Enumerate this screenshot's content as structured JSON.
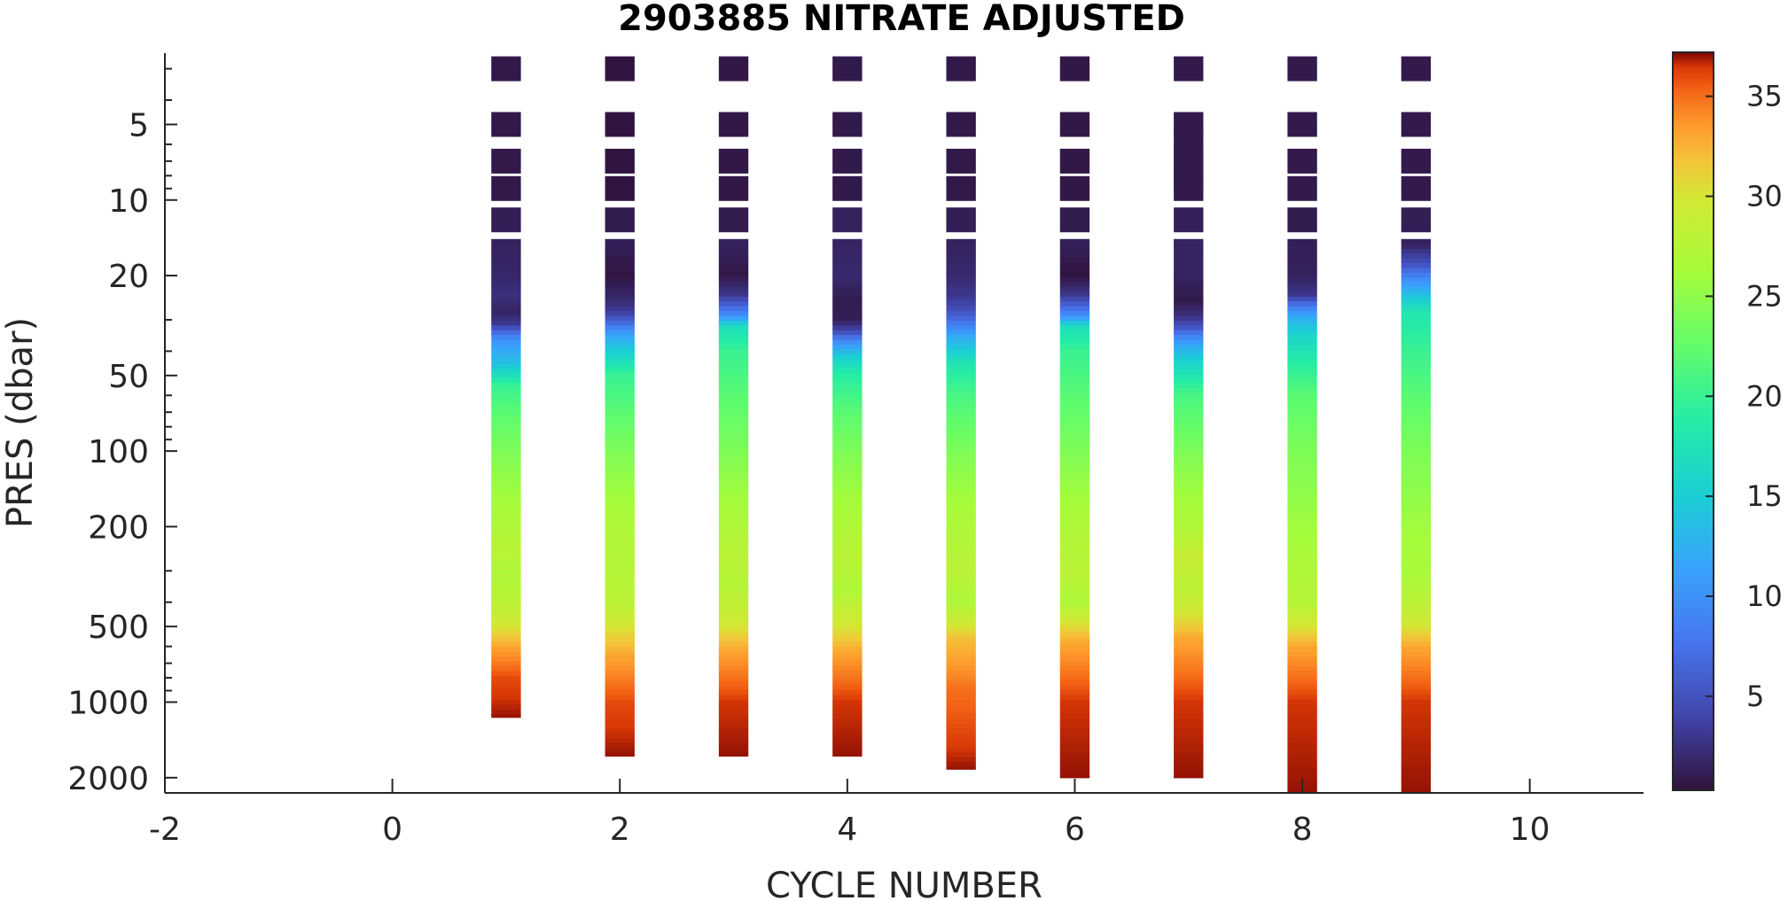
{
  "chart_data": {
    "type": "heatmap",
    "title": "2903885  NITRATE ADJUSTED",
    "xlabel": "CYCLE NUMBER",
    "ylabel": "PRES (dbar)",
    "xlim": [
      -2,
      11
    ],
    "ylim": [
      2.6,
      2300
    ],
    "y_scale": "log",
    "y_reversed": true,
    "x_ticks": [
      -2,
      0,
      2,
      4,
      6,
      8,
      10
    ],
    "y_ticks": [
      5,
      10,
      20,
      50,
      100,
      200,
      500,
      1000,
      2000
    ],
    "colorbar": {
      "range": [
        0.3,
        37.2
      ],
      "ticks": [
        5,
        10,
        15,
        20,
        25,
        30,
        35
      ],
      "colormap": "turbo"
    },
    "cycles": [
      {
        "cycle": 1,
        "max_pres": 1150,
        "mix_top": 40,
        "deep_start": 600,
        "profile": [
          [
            3,
            0.8
          ],
          [
            5,
            0.8
          ],
          [
            7,
            0.8
          ],
          [
            9,
            0.8
          ],
          [
            12,
            1.2
          ],
          [
            15,
            1.5
          ],
          [
            20,
            1.8
          ],
          [
            24,
            2.5
          ],
          [
            28,
            1.6
          ],
          [
            31,
            3
          ],
          [
            33,
            6
          ],
          [
            36,
            10
          ],
          [
            40,
            12
          ],
          [
            45,
            14
          ],
          [
            55,
            20
          ],
          [
            70,
            22
          ],
          [
            100,
            24
          ],
          [
            150,
            26
          ],
          [
            200,
            27
          ],
          [
            250,
            28
          ],
          [
            300,
            27
          ],
          [
            400,
            28
          ],
          [
            500,
            30
          ],
          [
            600,
            33
          ],
          [
            800,
            36
          ],
          [
            1150,
            37
          ]
        ]
      },
      {
        "cycle": 2,
        "max_pres": 1640,
        "mix_top": 34,
        "deep_start": 650,
        "profile": [
          [
            3,
            0.5
          ],
          [
            5,
            0.5
          ],
          [
            7,
            0.5
          ],
          [
            9,
            0.5
          ],
          [
            12,
            1
          ],
          [
            15,
            1.2
          ],
          [
            20,
            0.6
          ],
          [
            25,
            2
          ],
          [
            28,
            3.5
          ],
          [
            31,
            7
          ],
          [
            34,
            11
          ],
          [
            40,
            15
          ],
          [
            50,
            20
          ],
          [
            70,
            22
          ],
          [
            100,
            24
          ],
          [
            150,
            26
          ],
          [
            200,
            27
          ],
          [
            300,
            27.5
          ],
          [
            400,
            28
          ],
          [
            500,
            30
          ],
          [
            650,
            33
          ],
          [
            1000,
            36
          ],
          [
            1640,
            37
          ]
        ]
      },
      {
        "cycle": 3,
        "max_pres": 1640,
        "mix_top": 30,
        "deep_start": 620,
        "profile": [
          [
            3,
            0.7
          ],
          [
            5,
            0.7
          ],
          [
            7,
            0.7
          ],
          [
            9,
            0.7
          ],
          [
            12,
            1
          ],
          [
            15,
            1.4
          ],
          [
            20,
            0.8
          ],
          [
            24,
            3
          ],
          [
            26,
            6
          ],
          [
            29,
            10
          ],
          [
            32,
            17
          ],
          [
            40,
            20
          ],
          [
            60,
            22
          ],
          [
            100,
            24
          ],
          [
            150,
            26
          ],
          [
            200,
            27
          ],
          [
            260,
            28
          ],
          [
            350,
            27.5
          ],
          [
            500,
            30
          ],
          [
            620,
            33
          ],
          [
            1000,
            36.5
          ],
          [
            1640,
            37
          ]
        ]
      },
      {
        "cycle": 4,
        "max_pres": 1640,
        "mix_top": 42,
        "deep_start": 630,
        "profile": [
          [
            3,
            0.9
          ],
          [
            5,
            0.9
          ],
          [
            7,
            0.9
          ],
          [
            9,
            0.9
          ],
          [
            12,
            1.4
          ],
          [
            15,
            1.6
          ],
          [
            20,
            2
          ],
          [
            25,
            1
          ],
          [
            30,
            1.2
          ],
          [
            33,
            4
          ],
          [
            37,
            10
          ],
          [
            42,
            15
          ],
          [
            50,
            19
          ],
          [
            70,
            22
          ],
          [
            100,
            24
          ],
          [
            150,
            26
          ],
          [
            200,
            27
          ],
          [
            260,
            28
          ],
          [
            350,
            27
          ],
          [
            500,
            30
          ],
          [
            630,
            33
          ],
          [
            1000,
            36.5
          ],
          [
            1640,
            37
          ]
        ]
      },
      {
        "cycle": 5,
        "max_pres": 1850,
        "mix_top": 35,
        "deep_start": 560,
        "profile": [
          [
            3,
            0.8
          ],
          [
            5,
            0.8
          ],
          [
            7,
            0.8
          ],
          [
            9,
            0.8
          ],
          [
            12,
            1.2
          ],
          [
            15,
            1.5
          ],
          [
            20,
            2
          ],
          [
            24,
            3
          ],
          [
            27,
            4.5
          ],
          [
            30,
            7
          ],
          [
            35,
            12
          ],
          [
            45,
            18
          ],
          [
            60,
            21
          ],
          [
            100,
            24
          ],
          [
            150,
            26
          ],
          [
            200,
            27
          ],
          [
            300,
            28
          ],
          [
            400,
            27
          ],
          [
            500,
            30
          ],
          [
            560,
            32
          ],
          [
            900,
            35
          ],
          [
            1850,
            37
          ]
        ]
      },
      {
        "cycle": 6,
        "max_pres": 2000,
        "mix_top": 30,
        "deep_start": 580,
        "profile": [
          [
            3,
            0.7
          ],
          [
            5,
            0.7
          ],
          [
            7,
            0.7
          ],
          [
            9,
            0.7
          ],
          [
            12,
            1
          ],
          [
            15,
            1.3
          ],
          [
            20,
            0.5
          ],
          [
            24,
            3
          ],
          [
            26,
            6
          ],
          [
            29,
            10
          ],
          [
            32,
            17
          ],
          [
            40,
            20
          ],
          [
            60,
            22
          ],
          [
            100,
            24
          ],
          [
            150,
            26
          ],
          [
            200,
            27
          ],
          [
            300,
            28
          ],
          [
            400,
            27
          ],
          [
            480,
            30
          ],
          [
            580,
            33
          ],
          [
            1000,
            36.5
          ],
          [
            2000,
            37
          ]
        ]
      },
      {
        "cycle": 7,
        "max_pres": 2000,
        "mix_top": 38,
        "deep_start": 560,
        "profile": [
          [
            3,
            0.9
          ],
          [
            5,
            0.9
          ],
          [
            6,
            0.9
          ],
          [
            7,
            0.9
          ],
          [
            8,
            0.9
          ],
          [
            9,
            0.9
          ],
          [
            12,
            1.3
          ],
          [
            15,
            1.6
          ],
          [
            20,
            1.6
          ],
          [
            25,
            0.8
          ],
          [
            29,
            2.5
          ],
          [
            32,
            5
          ],
          [
            35,
            9
          ],
          [
            38,
            12
          ],
          [
            45,
            16
          ],
          [
            60,
            21
          ],
          [
            100,
            24
          ],
          [
            150,
            26
          ],
          [
            200,
            27
          ],
          [
            260,
            29
          ],
          [
            350,
            28
          ],
          [
            450,
            30
          ],
          [
            560,
            33
          ],
          [
            1000,
            36.5
          ],
          [
            2000,
            37
          ]
        ]
      },
      {
        "cycle": 8,
        "max_pres": 2300,
        "mix_top": 28,
        "deep_start": 600,
        "profile": [
          [
            3,
            0.9
          ],
          [
            5,
            0.9
          ],
          [
            7,
            0.9
          ],
          [
            9,
            0.9
          ],
          [
            12,
            1
          ],
          [
            15,
            1.2
          ],
          [
            20,
            1.4
          ],
          [
            24,
            3
          ],
          [
            27,
            9
          ],
          [
            30,
            13
          ],
          [
            35,
            16
          ],
          [
            45,
            19
          ],
          [
            60,
            22
          ],
          [
            100,
            24
          ],
          [
            150,
            25
          ],
          [
            200,
            26
          ],
          [
            300,
            27
          ],
          [
            400,
            27.5
          ],
          [
            500,
            30
          ],
          [
            600,
            33
          ],
          [
            1000,
            36.5
          ],
          [
            2300,
            37
          ]
        ]
      },
      {
        "cycle": 9,
        "max_pres": 2300,
        "mix_top": 19,
        "deep_start": 600,
        "profile": [
          [
            3,
            0.9
          ],
          [
            5,
            0.9
          ],
          [
            7,
            0.9
          ],
          [
            9,
            0.9
          ],
          [
            12,
            1.2
          ],
          [
            15,
            1.5
          ],
          [
            18,
            5
          ],
          [
            21,
            10
          ],
          [
            24,
            14
          ],
          [
            28,
            18
          ],
          [
            40,
            20
          ],
          [
            60,
            22
          ],
          [
            100,
            24
          ],
          [
            150,
            25
          ],
          [
            200,
            26
          ],
          [
            300,
            26.5
          ],
          [
            400,
            28
          ],
          [
            500,
            30
          ],
          [
            600,
            33
          ],
          [
            1000,
            36.5
          ],
          [
            2300,
            37
          ]
        ]
      }
    ]
  }
}
